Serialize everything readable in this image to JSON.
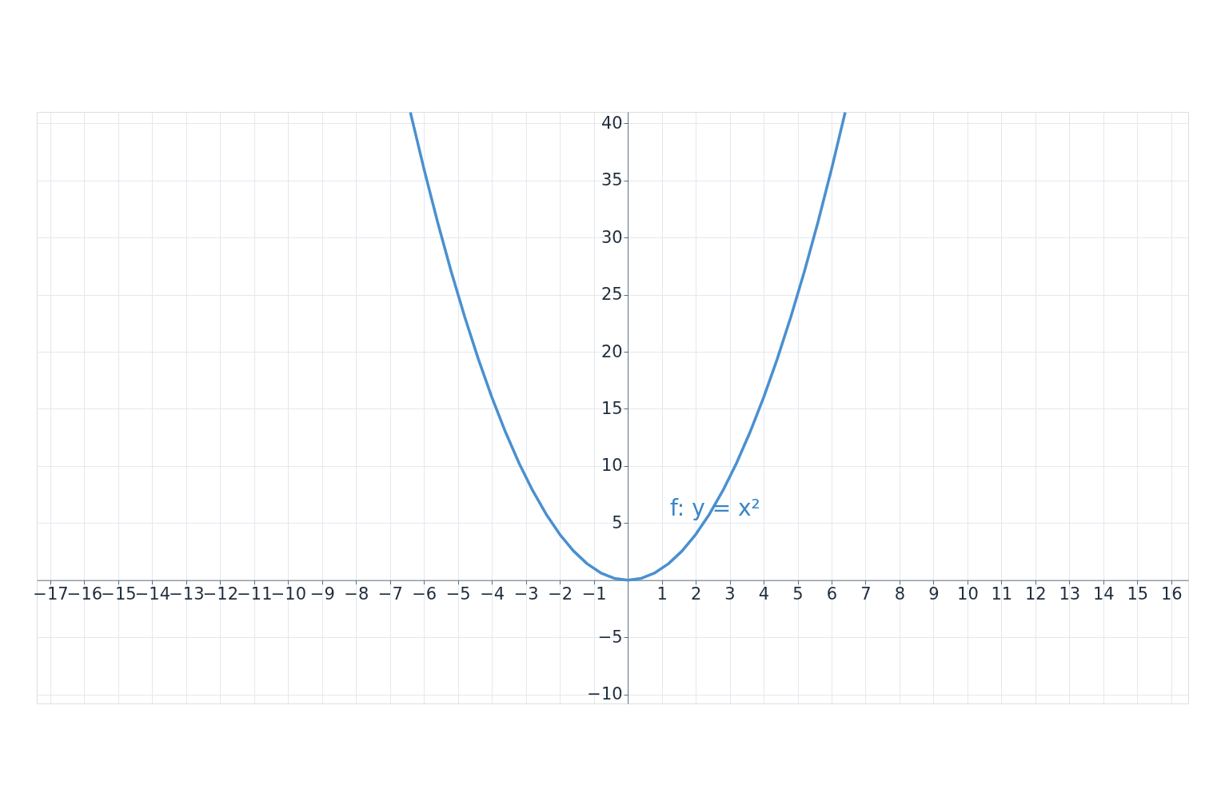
{
  "chart_data": {
    "type": "line",
    "x": [
      -6.4,
      -6.0,
      -5.6,
      -5.2,
      -4.8,
      -4.4,
      -4.0,
      -3.6,
      -3.2,
      -2.8,
      -2.4,
      -2.0,
      -1.6,
      -1.2,
      -0.8,
      -0.4,
      0,
      0.4,
      0.8,
      1.2,
      1.6,
      2.0,
      2.4,
      2.8,
      3.2,
      3.6,
      4.0,
      4.4,
      4.8,
      5.2,
      5.6,
      6.0,
      6.4
    ],
    "series": [
      {
        "color": "#4a90d0",
        "values": [
          40.96,
          36,
          31.36,
          27.04,
          23.04,
          19.36,
          16,
          12.96,
          10.24,
          7.84,
          5.76,
          4,
          2.56,
          1.44,
          0.64,
          0.16,
          0,
          0.16,
          0.64,
          1.44,
          2.56,
          4,
          5.76,
          7.84,
          10.24,
          12.96,
          16,
          19.36,
          23.04,
          27.04,
          31.36,
          36,
          40.96
        ]
      }
    ],
    "annotations": [
      "f: y = x²"
    ],
    "xlim": [
      -17.4,
      16.5
    ],
    "ylim": [
      -10.8,
      41
    ],
    "xticks": [
      -17,
      -16,
      -15,
      -14,
      -13,
      -12,
      -11,
      -10,
      -9,
      -8,
      -7,
      -6,
      -5,
      -4,
      -3,
      -2,
      -1,
      1,
      2,
      3,
      4,
      5,
      6,
      7,
      8,
      9,
      10,
      11,
      12,
      13,
      14,
      15,
      16
    ],
    "yticks": [
      -10,
      -5,
      5,
      10,
      15,
      20,
      25,
      30,
      35,
      40
    ],
    "grid": true,
    "marker": "none",
    "line_style": "solid"
  }
}
